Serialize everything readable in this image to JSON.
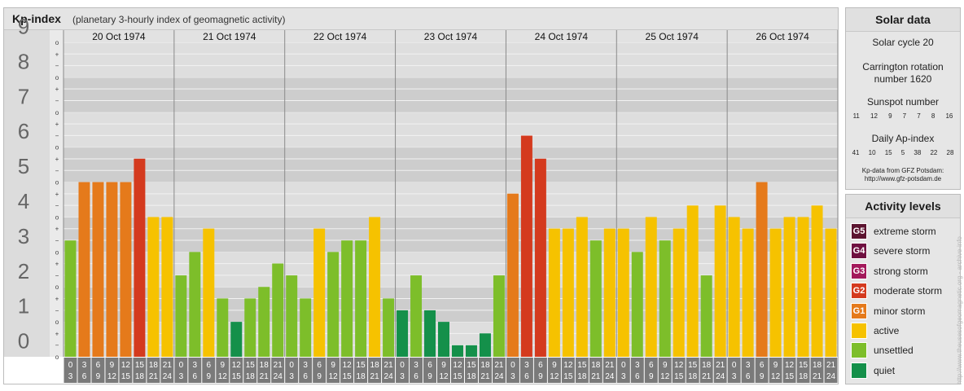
{
  "header": {
    "title": "Kp-index",
    "subtitle": "(planetary 3-hourly index of geomagnetic activity)"
  },
  "chart_data": {
    "type": "bar",
    "title": "Kp-index",
    "subtitle": "(planetary 3-hourly index of geomagnetic activity)",
    "ylim": [
      0,
      9
    ],
    "y_ticks": [
      "0",
      "1",
      "2",
      "3",
      "4",
      "5",
      "6",
      "7",
      "8",
      "9"
    ],
    "y_minor_labels": [
      "+",
      "o",
      "−"
    ],
    "days": [
      "20 Oct 1974",
      "21 Oct 1974",
      "22 Oct 1974",
      "23 Oct 1974",
      "24 Oct 1974",
      "25 Oct 1974",
      "26 Oct 1974"
    ],
    "interval_labels_top": [
      "0",
      "3",
      "6",
      "9",
      "12",
      "15",
      "18",
      "21"
    ],
    "interval_labels_bottom": [
      "3",
      "6",
      "9",
      "12",
      "15",
      "18",
      "21",
      "24"
    ],
    "values": [
      [
        3.33,
        5.0,
        5.0,
        5.0,
        5.0,
        5.67,
        4.0,
        4.0
      ],
      [
        2.33,
        3.0,
        3.67,
        1.67,
        1.0,
        1.67,
        2.0,
        2.67
      ],
      [
        2.33,
        1.67,
        3.67,
        3.0,
        3.33,
        3.33,
        4.0,
        1.67
      ],
      [
        1.33,
        2.33,
        1.33,
        1.0,
        0.33,
        0.33,
        0.67,
        2.33
      ],
      [
        4.67,
        6.33,
        5.67,
        3.67,
        3.67,
        4.0,
        3.33,
        3.67
      ],
      [
        3.67,
        3.0,
        4.0,
        3.33,
        3.67,
        4.33,
        2.33,
        4.33
      ],
      [
        4.0,
        3.67,
        5.0,
        3.67,
        4.0,
        4.0,
        4.33,
        3.67
      ]
    ],
    "grid": true
  },
  "solar": {
    "title": "Solar data",
    "cycle": "Solar cycle 20",
    "carrington_line1": "Carrington rotation",
    "carrington_line2": "number 1620",
    "sunspot_label": "Sunspot number",
    "sunspot_values": [
      "11",
      "12",
      "9",
      "7",
      "7",
      "8",
      "16"
    ],
    "ap_label": "Daily Ap-index",
    "ap_values": [
      "41",
      "10",
      "15",
      "5",
      "38",
      "22",
      "28"
    ],
    "credit_line1": "Kp-data from GFZ Potsdam:",
    "credit_line2": "http://www.gfz-potsdam.de"
  },
  "activity": {
    "title": "Activity levels",
    "levels": [
      {
        "badge": "G5",
        "label": "extreme storm",
        "color": "#5c1430"
      },
      {
        "badge": "G4",
        "label": "severe storm",
        "color": "#6f1040"
      },
      {
        "badge": "G3",
        "label": "strong storm",
        "color": "#a3195b"
      },
      {
        "badge": "G2",
        "label": "moderate storm",
        "color": "#d43a1e"
      },
      {
        "badge": "G1",
        "label": "minor storm",
        "color": "#e57a1b"
      },
      {
        "badge": "",
        "label": "active",
        "color": "#f6c200"
      },
      {
        "badge": "",
        "label": "unsettled",
        "color": "#7dbe2a"
      },
      {
        "badge": "",
        "label": "quiet",
        "color": "#14904a"
      }
    ]
  },
  "watermark": "http://www.theusesofgeomagnetic.org - archive-info"
}
